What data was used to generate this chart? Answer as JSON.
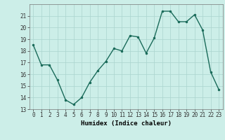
{
  "x": [
    0,
    1,
    2,
    3,
    4,
    5,
    6,
    7,
    8,
    9,
    10,
    11,
    12,
    13,
    14,
    15,
    16,
    17,
    18,
    19,
    20,
    21,
    22,
    23
  ],
  "y": [
    18.5,
    16.8,
    16.8,
    15.5,
    13.8,
    13.4,
    14.0,
    15.3,
    16.3,
    17.1,
    18.2,
    18.0,
    19.3,
    19.2,
    17.8,
    19.1,
    21.4,
    21.4,
    20.5,
    20.5,
    21.1,
    19.8,
    16.2,
    14.7
  ],
  "line_color": "#1a6b5a",
  "marker": ".",
  "marker_size": 3,
  "bg_color": "#cceee8",
  "grid_color": "#aad4ce",
  "xlabel": "Humidex (Indice chaleur)",
  "ylim": [
    13,
    22
  ],
  "xlim": [
    -0.5,
    23.5
  ],
  "yticks": [
    13,
    14,
    15,
    16,
    17,
    18,
    19,
    20,
    21
  ],
  "xticks": [
    0,
    1,
    2,
    3,
    4,
    5,
    6,
    7,
    8,
    9,
    10,
    11,
    12,
    13,
    14,
    15,
    16,
    17,
    18,
    19,
    20,
    21,
    22,
    23
  ],
  "tick_fontsize": 5.5,
  "xlabel_fontsize": 6.5,
  "line_width": 1.0
}
